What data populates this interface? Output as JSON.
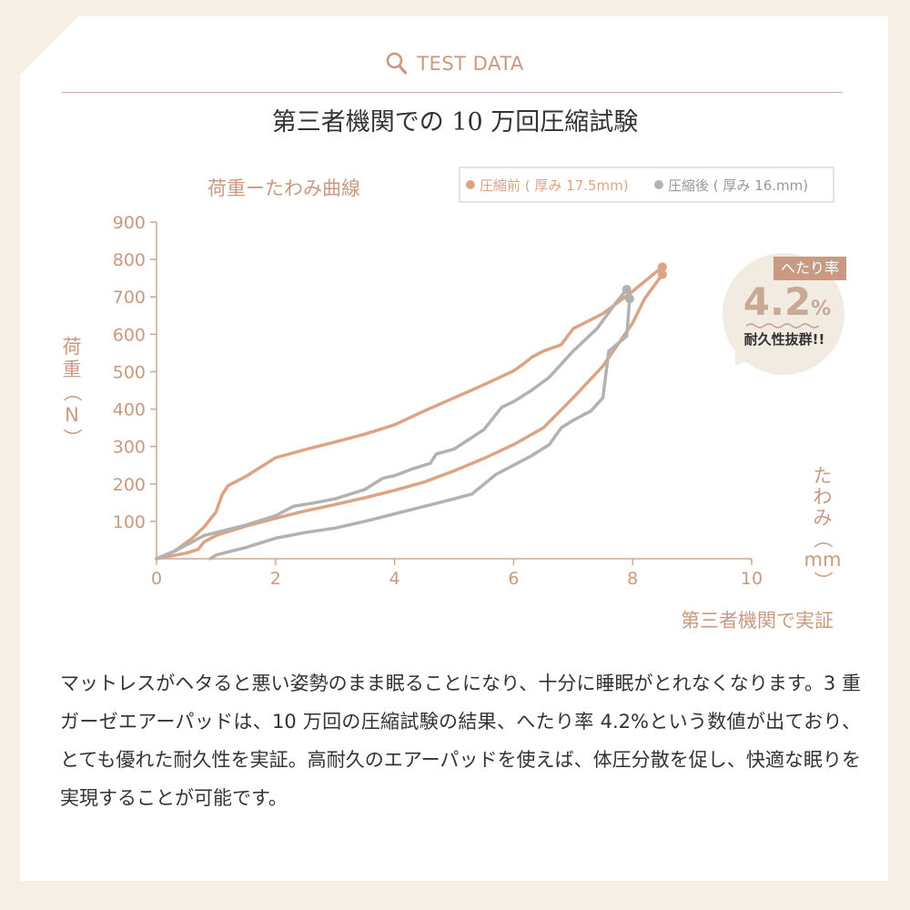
{
  "header": {
    "label": "TEST DATA",
    "icon": "search-icon",
    "title": "第三者機関での 10 万回圧縮試験"
  },
  "chart_data": {
    "type": "line",
    "title": "荷重ーたわみ曲線",
    "ylabel": "荷重（N）",
    "xlabel": "たわみ（mm）",
    "xlim": [
      0,
      10
    ],
    "ylim": [
      0,
      900
    ],
    "x_ticks": [
      "0",
      "2",
      "4",
      "6",
      "8",
      "10"
    ],
    "y_ticks": [
      "100",
      "200",
      "300",
      "400",
      "500",
      "600",
      "700",
      "800",
      "900"
    ],
    "grid": false,
    "legend_position": "top-right",
    "annotation": "第三者機関で実証",
    "series": [
      {
        "name": "圧縮前 ( 厚み 17.5mm)",
        "color": "#dda383",
        "loading": [
          [
            0,
            0
          ],
          [
            0.3,
            20
          ],
          [
            0.6,
            55
          ],
          [
            0.8,
            85
          ],
          [
            1.0,
            125
          ],
          [
            1.1,
            170
          ],
          [
            1.2,
            195
          ],
          [
            1.5,
            220
          ],
          [
            2.0,
            270
          ],
          [
            2.5,
            292
          ],
          [
            3.0,
            312
          ],
          [
            3.5,
            333
          ],
          [
            4.0,
            358
          ],
          [
            4.5,
            395
          ],
          [
            5.0,
            430
          ],
          [
            5.5,
            465
          ],
          [
            6.0,
            502
          ],
          [
            6.2,
            525
          ],
          [
            6.3,
            538
          ],
          [
            6.5,
            555
          ],
          [
            6.8,
            572
          ],
          [
            7.0,
            615
          ],
          [
            7.5,
            655
          ],
          [
            8.0,
            715
          ],
          [
            8.5,
            780
          ]
        ],
        "unloading": [
          [
            8.5,
            760
          ],
          [
            8.2,
            695
          ],
          [
            8.0,
            630
          ],
          [
            7.5,
            515
          ],
          [
            7.0,
            430
          ],
          [
            6.5,
            350
          ],
          [
            6.0,
            305
          ],
          [
            5.5,
            268
          ],
          [
            5.0,
            235
          ],
          [
            4.5,
            205
          ],
          [
            4.0,
            183
          ],
          [
            3.5,
            163
          ],
          [
            3.0,
            145
          ],
          [
            2.5,
            128
          ],
          [
            2.0,
            108
          ],
          [
            1.5,
            87
          ],
          [
            1.0,
            62
          ],
          [
            0.8,
            45
          ],
          [
            0.7,
            25
          ],
          [
            0.5,
            15
          ],
          [
            0,
            0
          ]
        ]
      },
      {
        "name": "圧縮後 ( 厚み 16.mm)",
        "color": "#b2b2b2",
        "loading": [
          [
            0,
            0
          ],
          [
            0.3,
            20
          ],
          [
            0.6,
            45
          ],
          [
            0.8,
            62
          ],
          [
            1.0,
            70
          ],
          [
            1.5,
            90
          ],
          [
            2.0,
            115
          ],
          [
            2.3,
            140
          ],
          [
            2.6,
            148
          ],
          [
            3.0,
            160
          ],
          [
            3.5,
            185
          ],
          [
            3.8,
            215
          ],
          [
            4.0,
            222
          ],
          [
            4.3,
            240
          ],
          [
            4.6,
            255
          ],
          [
            4.7,
            280
          ],
          [
            5.0,
            293
          ],
          [
            5.5,
            345
          ],
          [
            5.8,
            405
          ],
          [
            6.0,
            420
          ],
          [
            6.3,
            450
          ],
          [
            6.6,
            485
          ],
          [
            7.0,
            555
          ],
          [
            7.4,
            615
          ],
          [
            7.7,
            680
          ],
          [
            7.9,
            720
          ]
        ],
        "unloading": [
          [
            7.95,
            695
          ],
          [
            7.9,
            595
          ],
          [
            7.6,
            555
          ],
          [
            7.5,
            430
          ],
          [
            7.3,
            395
          ],
          [
            7.0,
            370
          ],
          [
            6.8,
            350
          ],
          [
            6.6,
            305
          ],
          [
            6.3,
            275
          ],
          [
            6.0,
            250
          ],
          [
            5.7,
            225
          ],
          [
            5.3,
            173
          ],
          [
            5.0,
            160
          ],
          [
            4.5,
            140
          ],
          [
            4.0,
            120
          ],
          [
            3.5,
            100
          ],
          [
            3.0,
            82
          ],
          [
            2.5,
            70
          ],
          [
            2.0,
            55
          ],
          [
            1.5,
            30
          ],
          [
            1.0,
            10
          ],
          [
            0.9,
            0
          ]
        ]
      }
    ]
  },
  "badge": {
    "tag": "へたり率",
    "value": "4.2",
    "unit": "%",
    "note": "耐久性抜群!!",
    "background": "#f2ebe2",
    "tag_color": "#c89a82"
  },
  "description": "マットレスがヘタると悪い姿勢のまま眠ることになり、十分に睡眠がとれなくなります。3 重ガーゼエアーパッドは、10 万回の圧縮試験の結果、へたり率 4.2%という数値が出ており、とても優れた耐久性を実証。高耐久のエアーパッドを使えば、体圧分散を促し、快適な眠りを実現することが可能です。",
  "colors": {
    "accent": "#c99a80",
    "axis": "#c9a897",
    "text": "#333333",
    "background": "#f5efe6"
  }
}
